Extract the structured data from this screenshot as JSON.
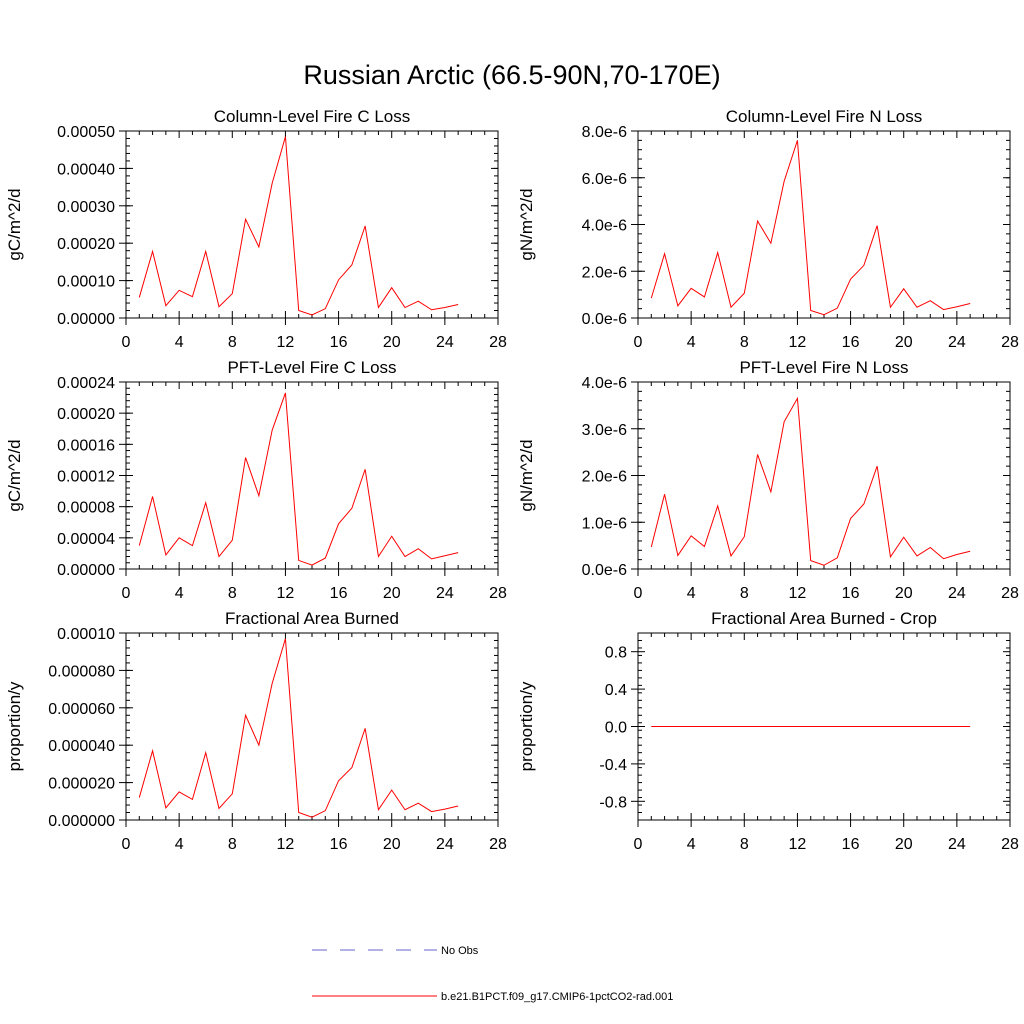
{
  "figure": {
    "title": "Russian Arctic (66.5-90N,70-170E)"
  },
  "legend": {
    "entries": [
      {
        "label": "No Obs",
        "style": "dashed",
        "color": "#6666cc"
      },
      {
        "label": "b.e21.B1PCT.f09_g17.CMIP6-1pctCO2-rad.001",
        "style": "solid",
        "color": "#ff0000"
      }
    ]
  },
  "colors": {
    "series": "#ff0000",
    "axis": "#000000"
  },
  "chart_data": [
    {
      "type": "line",
      "title": "Column-Level Fire C Loss",
      "ylabel": "gC/m^2/d",
      "xlim": [
        0,
        28
      ],
      "ylim": [
        0,
        0.0005
      ],
      "xticks": [
        0,
        4,
        8,
        12,
        16,
        20,
        24,
        28
      ],
      "yticks": [
        0,
        0.0001,
        0.0002,
        0.0003,
        0.0004,
        0.0005
      ],
      "ytick_labels": [
        "0.00000",
        "0.00010",
        "0.00020",
        "0.00030",
        "0.00040",
        "0.00050"
      ],
      "grid": false,
      "x": [
        1,
        2,
        3,
        4,
        5,
        6,
        7,
        8,
        9,
        10,
        11,
        12,
        13,
        14,
        15,
        16,
        17,
        18,
        19,
        20,
        21,
        22,
        23,
        24,
        25
      ],
      "values": [
        5.5e-05,
        0.000178,
        3.3e-05,
        7.4e-05,
        5.7e-05,
        0.000178,
        3e-05,
        6.5e-05,
        0.000264,
        0.00019,
        0.00036,
        0.000485,
        2e-05,
        8e-06,
        2.5e-05,
        0.000102,
        0.000142,
        0.000246,
        2.8e-05,
        8.1e-05,
        2.8e-05,
        4.5e-05,
        2.2e-05,
        2.8e-05,
        3.6e-05
      ]
    },
    {
      "type": "line",
      "title": "Column-Level Fire N Loss",
      "ylabel": "gN/m^2/d",
      "xlim": [
        0,
        28
      ],
      "ylim": [
        0,
        8e-06
      ],
      "xticks": [
        0,
        4,
        8,
        12,
        16,
        20,
        24,
        28
      ],
      "yticks": [
        0,
        2e-06,
        4e-06,
        6e-06,
        8e-06
      ],
      "ytick_labels": [
        "0.0e-6",
        "2.0e-6",
        "4.0e-6",
        "6.0e-6",
        "8.0e-6"
      ],
      "grid": false,
      "x": [
        1,
        2,
        3,
        4,
        5,
        6,
        7,
        8,
        9,
        10,
        11,
        12,
        13,
        14,
        15,
        16,
        17,
        18,
        19,
        20,
        21,
        22,
        23,
        24,
        25
      ],
      "values": [
        8.5e-07,
        2.75e-06,
        5.2e-07,
        1.27e-06,
        9e-07,
        2.8e-06,
        4.6e-07,
        1.06e-06,
        4.15e-06,
        3.2e-06,
        5.85e-06,
        7.6e-06,
        3.2e-07,
        1.4e-07,
        4.2e-07,
        1.66e-06,
        2.25e-06,
        3.95e-06,
        4.6e-07,
        1.25e-06,
        4.6e-07,
        7.4e-07,
        3.6e-07,
        4.8e-07,
        6.2e-07
      ]
    },
    {
      "type": "line",
      "title": "PFT-Level Fire C Loss",
      "ylabel": "gC/m^2/d",
      "xlim": [
        0,
        28
      ],
      "ylim": [
        0,
        0.00024
      ],
      "xticks": [
        0,
        4,
        8,
        12,
        16,
        20,
        24,
        28
      ],
      "yticks": [
        0,
        4e-05,
        8e-05,
        0.00012,
        0.00016,
        0.0002,
        0.00024
      ],
      "ytick_labels": [
        "0.00000",
        "0.00004",
        "0.00008",
        "0.00012",
        "0.00016",
        "0.00020",
        "0.00024"
      ],
      "grid": false,
      "x": [
        1,
        2,
        3,
        4,
        5,
        6,
        7,
        8,
        9,
        10,
        11,
        12,
        13,
        14,
        15,
        16,
        17,
        18,
        19,
        20,
        21,
        22,
        23,
        24,
        25
      ],
      "values": [
        3e-05,
        9.3e-05,
        1.8e-05,
        4e-05,
        3e-05,
        8.5e-05,
        1.6e-05,
        3.7e-05,
        0.000143,
        9.4e-05,
        0.000178,
        0.000226,
        1.1e-05,
        5e-06,
        1.4e-05,
        5.8e-05,
        7.8e-05,
        0.000128,
        1.6e-05,
        4.2e-05,
        1.6e-05,
        2.6e-05,
        1.3e-05,
        1.7e-05,
        2.1e-05
      ]
    },
    {
      "type": "line",
      "title": "PFT-Level Fire N Loss",
      "ylabel": "gN/m^2/d",
      "xlim": [
        0,
        28
      ],
      "ylim": [
        0,
        4e-06
      ],
      "xticks": [
        0,
        4,
        8,
        12,
        16,
        20,
        24,
        28
      ],
      "yticks": [
        0,
        1e-06,
        2e-06,
        3e-06,
        4e-06
      ],
      "ytick_labels": [
        "0.0e-6",
        "1.0e-6",
        "2.0e-6",
        "3.0e-6",
        "4.0e-6"
      ],
      "grid": false,
      "x": [
        1,
        2,
        3,
        4,
        5,
        6,
        7,
        8,
        9,
        10,
        11,
        12,
        13,
        14,
        15,
        16,
        17,
        18,
        19,
        20,
        21,
        22,
        23,
        24,
        25
      ],
      "values": [
        4.7e-07,
        1.6e-06,
        2.9e-07,
        7.1e-07,
        4.8e-07,
        1.35e-06,
        2.8e-07,
        6.9e-07,
        2.45e-06,
        1.65e-06,
        3.15e-06,
        3.65e-06,
        1.8e-07,
        8e-08,
        2.4e-07,
        1.08e-06,
        1.39e-06,
        2.2e-06,
        2.6e-07,
        6.8e-07,
        2.8e-07,
        4.6e-07,
        2.2e-07,
        3.1e-07,
        3.8e-07
      ]
    },
    {
      "type": "line",
      "title": "Fractional Area Burned",
      "ylabel": "proportion/y",
      "xlim": [
        0,
        28
      ],
      "ylim": [
        0,
        0.0001
      ],
      "xticks": [
        0,
        4,
        8,
        12,
        16,
        20,
        24,
        28
      ],
      "yticks": [
        0,
        2e-05,
        4e-05,
        6e-05,
        8e-05,
        0.0001
      ],
      "ytick_labels": [
        "0.000000",
        "0.000020",
        "0.000040",
        "0.000060",
        "0.000080",
        "0.00010"
      ],
      "grid": false,
      "x": [
        1,
        2,
        3,
        4,
        5,
        6,
        7,
        8,
        9,
        10,
        11,
        12,
        13,
        14,
        15,
        16,
        17,
        18,
        19,
        20,
        21,
        22,
        23,
        24,
        25
      ],
      "values": [
        1.2e-05,
        3.7e-05,
        6.5e-06,
        1.5e-05,
        1.1e-05,
        3.6e-05,
        6.2e-06,
        1.4e-05,
        5.6e-05,
        4e-05,
        7.3e-05,
        9.7e-05,
        4e-06,
        1.5e-06,
        5e-06,
        2.1e-05,
        2.8e-05,
        4.9e-05,
        5.5e-06,
        1.6e-05,
        5.5e-06,
        9e-06,
        4.5e-06,
        5.8e-06,
        7.5e-06
      ]
    },
    {
      "type": "line",
      "title": "Fractional Area Burned - Crop",
      "ylabel": "proportion/y",
      "xlim": [
        0,
        28
      ],
      "ylim": [
        -1,
        1
      ],
      "xticks": [
        0,
        4,
        8,
        12,
        16,
        20,
        24,
        28
      ],
      "yticks": [
        -0.8,
        -0.4,
        0,
        0.4,
        0.8
      ],
      "ytick_labels": [
        "-0.8",
        "-0.4",
        "0.0",
        "0.4",
        "0.8"
      ],
      "grid": false,
      "x": [
        1,
        2,
        3,
        4,
        5,
        6,
        7,
        8,
        9,
        10,
        11,
        12,
        13,
        14,
        15,
        16,
        17,
        18,
        19,
        20,
        21,
        22,
        23,
        24,
        25
      ],
      "values": [
        0,
        0,
        0,
        0,
        0,
        0,
        0,
        0,
        0,
        0,
        0,
        0,
        0,
        0,
        0,
        0,
        0,
        0,
        0,
        0,
        0,
        0,
        0,
        0,
        0
      ]
    }
  ]
}
